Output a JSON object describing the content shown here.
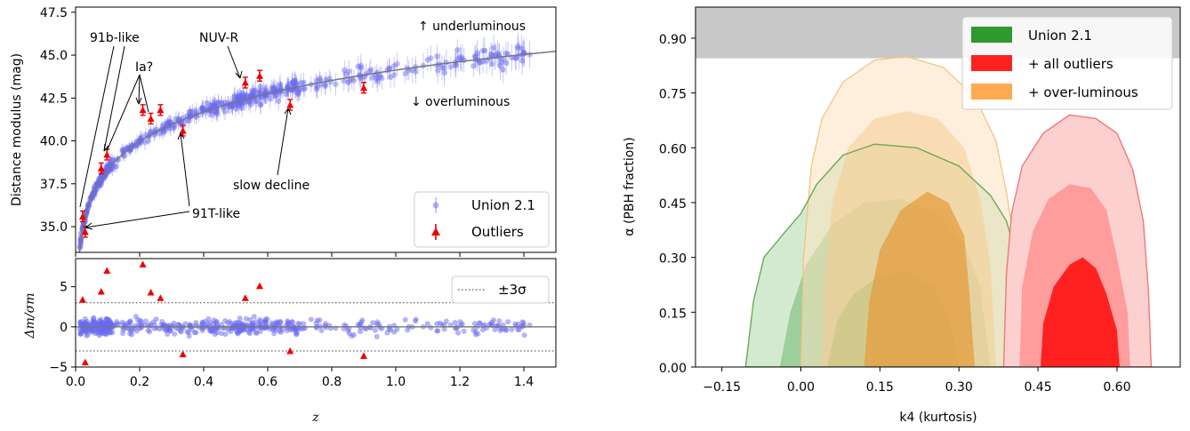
{
  "chart_data": [
    {
      "panel": "hubble-diagram",
      "type": "scatter",
      "ylabel": "Distance modulus (mag)",
      "xlim": [
        0,
        1.5
      ],
      "ylim": [
        33.5,
        47.8
      ],
      "xticks": [
        "0.0",
        "0.2",
        "0.4",
        "0.6",
        "0.8",
        "1.0",
        "1.2",
        "1.4"
      ],
      "yticks": [
        35.0,
        37.5,
        40.0,
        42.5,
        45.0,
        47.5
      ],
      "ytick_labels": [
        "35.0",
        "37.5",
        "40.0",
        "42.5",
        "45.0",
        "47.5"
      ],
      "legend": [
        "Union 2.1",
        "Outliers"
      ],
      "legend_position": "lower-right",
      "texts": {
        "underluminous": "↑ underluminous",
        "overluminous": "↓ overluminous",
        "b91": "91b-like",
        "ia": "Ia?",
        "nuvr": "NUV-R",
        "slow": "slow decline",
        "t91": "91T-like"
      },
      "outliers": [
        {
          "z": 0.022,
          "mu": 35.6
        },
        {
          "z": 0.03,
          "mu": 34.7
        },
        {
          "z": 0.08,
          "mu": 38.4
        },
        {
          "z": 0.098,
          "mu": 39.2
        },
        {
          "z": 0.21,
          "mu": 41.8
        },
        {
          "z": 0.235,
          "mu": 41.3
        },
        {
          "z": 0.265,
          "mu": 41.8
        },
        {
          "z": 0.335,
          "mu": 40.6
        },
        {
          "z": 0.53,
          "mu": 43.4
        },
        {
          "z": 0.575,
          "mu": 43.8
        },
        {
          "z": 0.67,
          "mu": 42.1
        },
        {
          "z": 0.9,
          "mu": 43.1
        }
      ],
      "colors": {
        "union": "#6a6af2",
        "outlier": "#ee0000",
        "fit": "#777777"
      }
    },
    {
      "panel": "residuals",
      "type": "scatter",
      "ylabel": "Δm/σm",
      "xlabel": "z",
      "xlim": [
        0,
        1.5
      ],
      "ylim": [
        -5,
        8.5
      ],
      "yticks": [
        -5,
        0,
        5
      ],
      "ytick_labels": [
        "−5",
        "0",
        "5"
      ],
      "legend": [
        "±3σ"
      ],
      "threshold": 3,
      "outliers": [
        {
          "z": 0.022,
          "r": 3.4
        },
        {
          "z": 0.03,
          "r": -4.4
        },
        {
          "z": 0.08,
          "r": 4.4
        },
        {
          "z": 0.098,
          "r": 7.0
        },
        {
          "z": 0.21,
          "r": 7.8
        },
        {
          "z": 0.235,
          "r": 4.3
        },
        {
          "z": 0.265,
          "r": 3.6
        },
        {
          "z": 0.335,
          "r": -3.4
        },
        {
          "z": 0.53,
          "r": 3.6
        },
        {
          "z": 0.575,
          "r": 5.1
        },
        {
          "z": 0.67,
          "r": -3.0
        },
        {
          "z": 0.9,
          "r": -3.6
        }
      ]
    },
    {
      "panel": "posterior-contours",
      "type": "area",
      "xlabel": "k4 (kurtosis)",
      "ylabel": "α (PBH fraction)",
      "xlim": [
        -0.2,
        0.72
      ],
      "ylim": [
        0,
        0.985
      ],
      "xticks": [
        -0.15,
        0.0,
        0.15,
        0.3,
        0.45,
        0.6
      ],
      "xtick_labels": [
        "−0.15",
        "0.00",
        "0.15",
        "0.30",
        "0.45",
        "0.60"
      ],
      "yticks": [
        0.0,
        0.15,
        0.3,
        0.45,
        0.6,
        0.75,
        0.9
      ],
      "ytick_labels": [
        "0.00",
        "0.15",
        "0.30",
        "0.45",
        "0.60",
        "0.75",
        "0.90"
      ],
      "excluded_band": [
        0.845,
        0.985
      ],
      "legend": [
        "Union 2.1",
        "+ all outliers",
        "+ over-luminous"
      ],
      "legend_position": "top-right",
      "colors": {
        "union": "#2e9a2e",
        "all": "#ff2020",
        "over": "#ffaa50",
        "band": "#c8c8c8"
      }
    }
  ]
}
